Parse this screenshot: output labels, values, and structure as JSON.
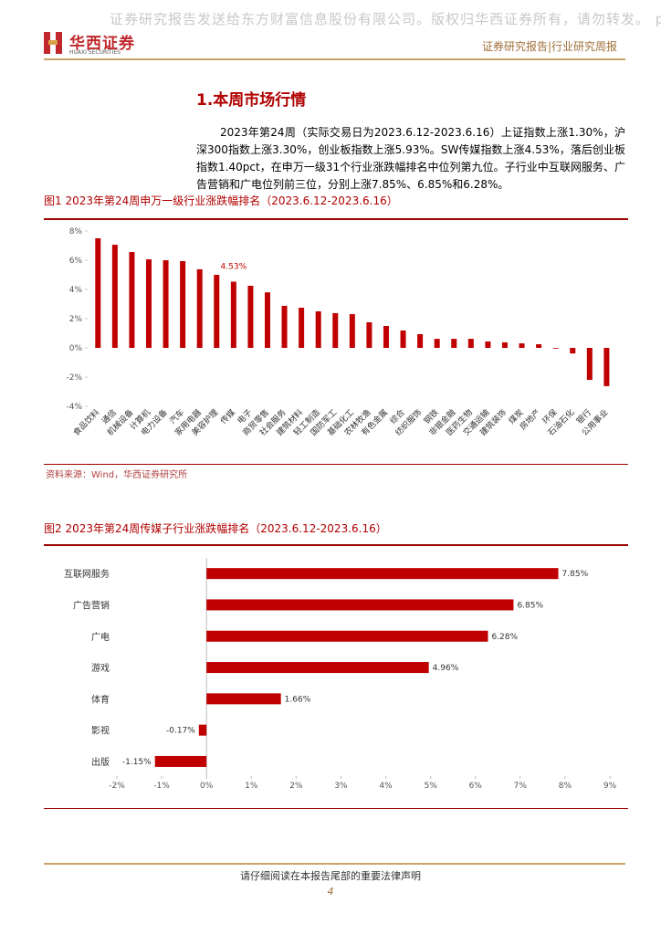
{
  "header": {
    "watermark": "证券研究报告发送给东方财富信息股份有限公司。版权归华西证券所有，请勿转发。 p",
    "logo_cn": "华西证券",
    "logo_en": "HUAXI SECURITIES",
    "report_type": "证券研究报告|行业研究周报"
  },
  "section_title": "1.本周市场行情",
  "paragraph": "2023年第24周（实际交易日为2023.6.12-2023.6.16）上证指数上涨1.30%，沪深300指数上涨3.30%，创业板指数上涨5.93%。SW传媒指数上涨4.53%，落后创业板指数1.40pct，在申万一级31个行业涨跌幅排名中位列第九位。子行业中互联网服务、广告营销和广电位列前三位，分别上涨7.85%、6.85%和6.28%。",
  "chart_data": [
    {
      "type": "bar",
      "orientation": "vertical",
      "title": "图1 2023年第24周申万一级行业涨跌幅排名（2023.6.12-2023.6.16）",
      "source": "资料来源：Wind，华西证券研究所",
      "color": "#c00000",
      "categories": [
        "食品饮料",
        "通信",
        "机械设备",
        "计算机",
        "电力设备",
        "汽车",
        "家用电器",
        "美容护理",
        "传媒",
        "电子",
        "商贸零售",
        "社会服务",
        "建筑材料",
        "轻工制造",
        "国防军工",
        "基础化工",
        "农林牧渔",
        "有色金属",
        "综合",
        "纺织服饰",
        "钢铁",
        "非银金融",
        "医药生物",
        "交通运输",
        "建筑装饰",
        "煤炭",
        "房地产",
        "环保",
        "石油石化",
        "银行",
        "公用事业"
      ],
      "values": [
        7.5,
        7.06,
        6.56,
        6.06,
        6.0,
        5.94,
        5.38,
        5.0,
        4.53,
        4.25,
        3.8,
        2.88,
        2.75,
        2.5,
        2.38,
        2.31,
        1.75,
        1.5,
        1.19,
        0.94,
        0.62,
        0.62,
        0.62,
        0.44,
        0.38,
        0.31,
        0.25,
        -0.05,
        -0.38,
        -2.19,
        -2.62
      ],
      "value_labels": [
        null,
        null,
        null,
        null,
        null,
        null,
        null,
        null,
        "4.53%",
        null,
        null,
        null,
        null,
        null,
        null,
        null,
        null,
        null,
        null,
        null,
        null,
        null,
        null,
        null,
        null,
        null,
        null,
        null,
        null,
        null,
        null
      ],
      "ylim": [
        -4,
        8
      ],
      "yticks": [
        {
          "value": -4,
          "label": "-4%"
        },
        {
          "value": -2,
          "label": "-2%"
        },
        {
          "value": 0,
          "label": "0%"
        },
        {
          "value": 2,
          "label": "2%"
        },
        {
          "value": 4,
          "label": "4%"
        },
        {
          "value": 6,
          "label": "6%"
        },
        {
          "value": 8,
          "label": "8%"
        }
      ]
    },
    {
      "type": "bar",
      "orientation": "horizontal",
      "title": "图2 2023年第24周传媒子行业涨跌幅排名（2023.6.12-2023.6.16）",
      "color": "#c00000",
      "categories": [
        "互联网服务",
        "广告营销",
        "广电",
        "游戏",
        "体育",
        "影视",
        "出版"
      ],
      "values": [
        7.85,
        6.85,
        6.28,
        4.96,
        1.66,
        -0.17,
        -1.15
      ],
      "value_labels": [
        "7.85%",
        "6.85%",
        "6.28%",
        "4.96%",
        "1.66%",
        "-0.17%",
        "-1.15%"
      ],
      "xlim": [
        -2,
        9
      ],
      "xticks": [
        {
          "value": -2,
          "label": "-2%"
        },
        {
          "value": -1,
          "label": "-1%"
        },
        {
          "value": 0,
          "label": "0%"
        },
        {
          "value": 1,
          "label": "1%"
        },
        {
          "value": 2,
          "label": "2%"
        },
        {
          "value": 3,
          "label": "3%"
        },
        {
          "value": 4,
          "label": "4%"
        },
        {
          "value": 5,
          "label": "5%"
        },
        {
          "value": 6,
          "label": "6%"
        },
        {
          "value": 7,
          "label": "7%"
        },
        {
          "value": 8,
          "label": "8%"
        },
        {
          "value": 9,
          "label": "9%"
        }
      ]
    }
  ],
  "footer": {
    "disclaimer": "请仔细阅读在本报告尾部的重要法律声明",
    "page": 4
  }
}
